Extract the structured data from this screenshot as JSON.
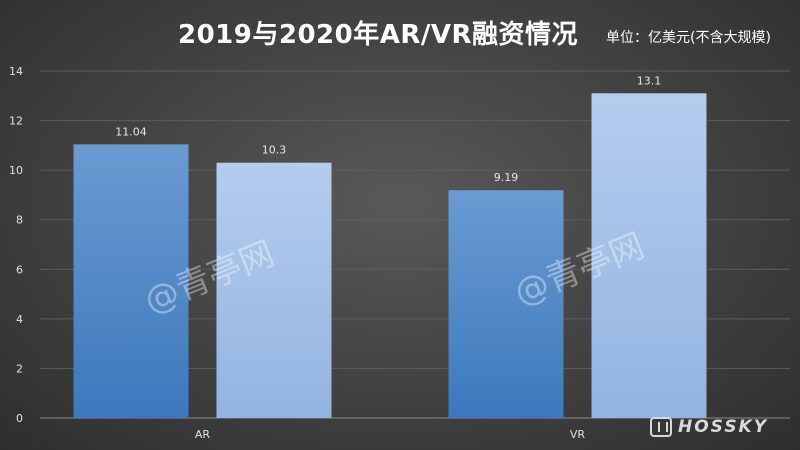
{
  "chart_data": {
    "type": "bar",
    "title": "2019与2020年AR/VR融资情况",
    "unit_label": "单位：亿美元(不含大规模)",
    "categories": [
      "AR",
      "VR"
    ],
    "series": [
      {
        "name": "2019",
        "values": [
          11.04,
          9.19
        ],
        "labels": [
          "11.04",
          "9.19"
        ],
        "color": "#4a84c4"
      },
      {
        "name": "2020",
        "values": [
          10.3,
          13.1
        ],
        "labels": [
          "10.3",
          "13.1"
        ],
        "color": "#a4bfe6"
      }
    ],
    "ylim": [
      0,
      14
    ],
    "yticks": [
      0,
      2,
      4,
      6,
      8,
      10,
      12,
      14
    ],
    "grid": true,
    "legend": "none",
    "xlabel": "",
    "ylabel": ""
  },
  "watermark": {
    "text": "@青亭网"
  },
  "logo": {
    "text": "HOSSKY"
  }
}
